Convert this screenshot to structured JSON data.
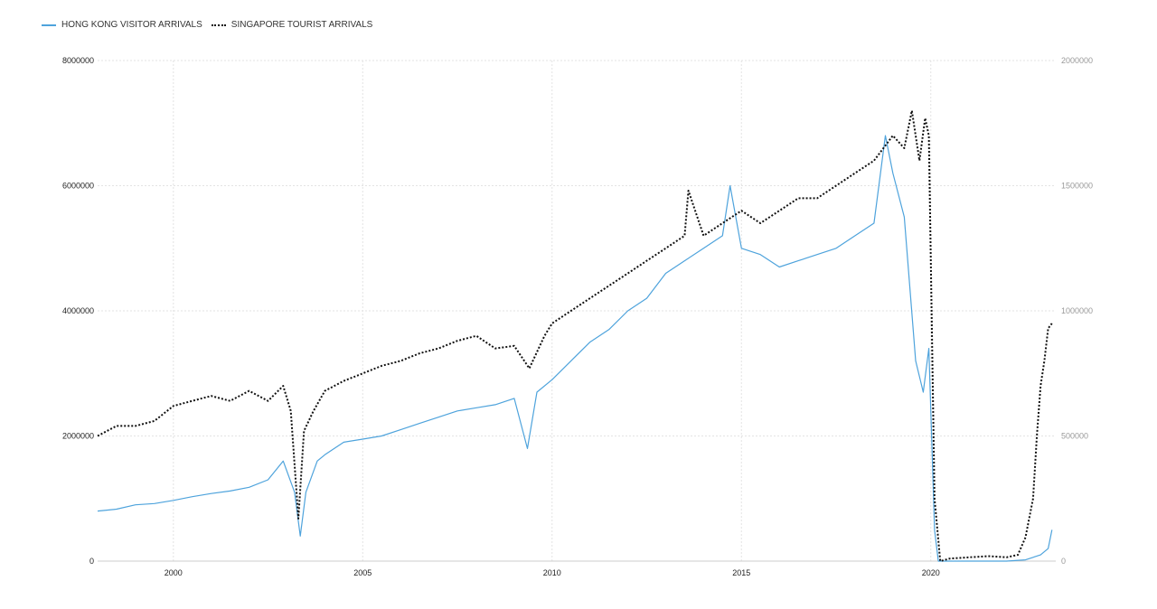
{
  "chart_data": {
    "type": "line",
    "legend_position": "top-left",
    "grid": true,
    "x_ticks": [
      "2000",
      "2005",
      "2010",
      "2015",
      "2020"
    ],
    "xlim": [
      1998.0,
      2023.3
    ],
    "left_axis": {
      "ticks": [
        "0",
        "2000000",
        "4000000",
        "6000000",
        "8000000"
      ],
      "ylim": [
        0,
        8000000
      ]
    },
    "right_axis": {
      "ticks": [
        "0",
        "500000",
        "1000000",
        "1500000",
        "2000000"
      ],
      "ylim": [
        0,
        2000000
      ]
    },
    "series": [
      {
        "name": "HONG KONG VISITOR ARRIVALS",
        "axis": "left",
        "color": "#4ea3dc",
        "style": "solid",
        "x": [
          1998.0,
          1998.5,
          1999.0,
          1999.5,
          2000.0,
          2000.5,
          2001.0,
          2001.5,
          2002.0,
          2002.5,
          2002.9,
          2003.2,
          2003.35,
          2003.5,
          2003.8,
          2004.0,
          2004.5,
          2005.0,
          2005.5,
          2006.0,
          2006.5,
          2007.0,
          2007.5,
          2008.0,
          2008.5,
          2009.0,
          2009.35,
          2009.6,
          2010.0,
          2010.5,
          2011.0,
          2011.5,
          2012.0,
          2012.5,
          2013.0,
          2013.5,
          2014.0,
          2014.5,
          2014.7,
          2015.0,
          2015.5,
          2016.0,
          2016.5,
          2017.0,
          2017.5,
          2018.0,
          2018.5,
          2018.8,
          2019.0,
          2019.3,
          2019.6,
          2019.8,
          2019.95,
          2020.1,
          2020.2,
          2021.0,
          2021.5,
          2022.0,
          2022.5,
          2022.9,
          2023.1,
          2023.2
        ],
        "values": [
          800000,
          830000,
          900000,
          920000,
          970000,
          1030000,
          1080000,
          1120000,
          1180000,
          1300000,
          1600000,
          1100000,
          400000,
          1100000,
          1600000,
          1700000,
          1900000,
          1950000,
          2000000,
          2100000,
          2200000,
          2300000,
          2400000,
          2450000,
          2500000,
          2600000,
          1800000,
          2700000,
          2900000,
          3200000,
          3500000,
          3700000,
          4000000,
          4200000,
          4600000,
          4800000,
          5000000,
          5200000,
          6000000,
          5000000,
          4900000,
          4700000,
          4800000,
          4900000,
          5000000,
          5200000,
          5400000,
          6800000,
          6200000,
          5500000,
          3200000,
          2700000,
          3400000,
          500000,
          0,
          0,
          0,
          0,
          20000,
          100000,
          200000,
          500000
        ]
      },
      {
        "name": "SINGAPORE TOURIST ARRIVALS",
        "axis": "right",
        "color": "#111111",
        "style": "dotted",
        "x": [
          1998.0,
          1998.5,
          1999.0,
          1999.5,
          2000.0,
          2000.5,
          2001.0,
          2001.5,
          2002.0,
          2002.5,
          2002.9,
          2003.1,
          2003.3,
          2003.45,
          2003.7,
          2004.0,
          2004.5,
          2005.0,
          2005.5,
          2006.0,
          2006.5,
          2007.0,
          2007.5,
          2008.0,
          2008.5,
          2009.0,
          2009.4,
          2009.8,
          2010.0,
          2010.5,
          2011.0,
          2011.5,
          2012.0,
          2012.5,
          2013.0,
          2013.5,
          2013.6,
          2014.0,
          2014.5,
          2015.0,
          2015.5,
          2016.0,
          2016.5,
          2017.0,
          2017.5,
          2018.0,
          2018.5,
          2019.0,
          2019.3,
          2019.5,
          2019.7,
          2019.85,
          2019.95,
          2020.1,
          2020.25,
          2020.5,
          2021.0,
          2021.5,
          2022.0,
          2022.3,
          2022.5,
          2022.7,
          2022.8,
          2022.9,
          2023.0,
          2023.1,
          2023.2
        ],
        "values": [
          500000,
          540000,
          540000,
          560000,
          620000,
          640000,
          660000,
          640000,
          680000,
          640000,
          700000,
          600000,
          170000,
          520000,
          600000,
          680000,
          720000,
          750000,
          780000,
          800000,
          830000,
          850000,
          880000,
          900000,
          850000,
          860000,
          770000,
          900000,
          950000,
          1000000,
          1050000,
          1100000,
          1150000,
          1200000,
          1250000,
          1300000,
          1480000,
          1300000,
          1350000,
          1400000,
          1350000,
          1400000,
          1450000,
          1450000,
          1500000,
          1550000,
          1600000,
          1700000,
          1650000,
          1800000,
          1600000,
          1770000,
          1700000,
          250000,
          0,
          10000,
          15000,
          20000,
          15000,
          25000,
          95000,
          250000,
          500000,
          700000,
          800000,
          930000,
          950000
        ]
      }
    ]
  }
}
